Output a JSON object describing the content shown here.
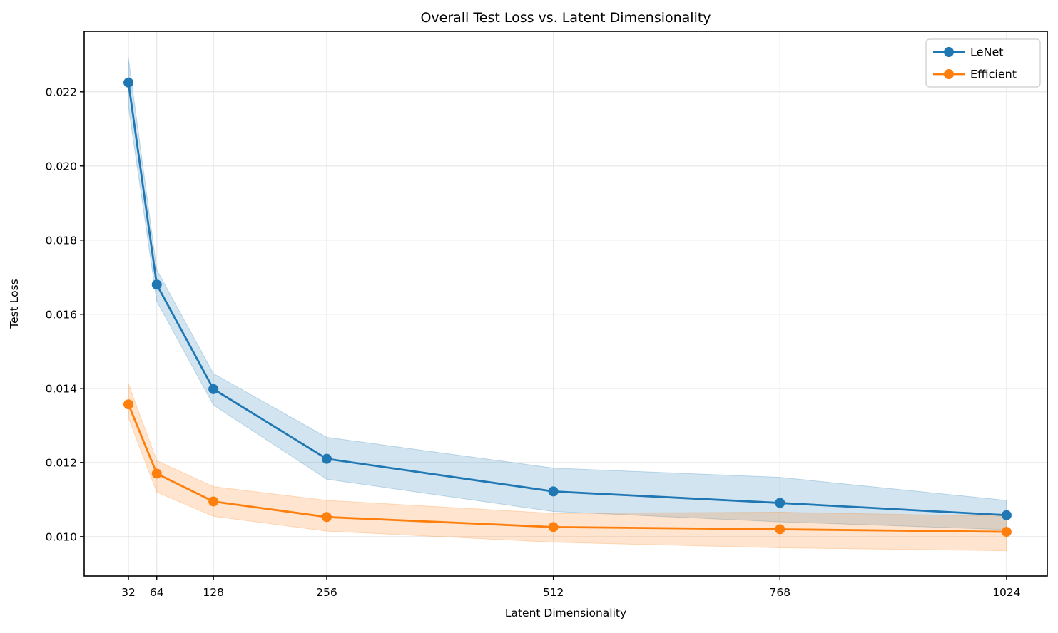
{
  "chart_data": {
    "type": "line",
    "title": "Overall Test Loss vs. Latent Dimensionality",
    "xlabel": "Latent Dimensionality",
    "ylabel": "Test Loss",
    "x": [
      32,
      64,
      128,
      256,
      512,
      768,
      1024
    ],
    "xtick_labels": [
      "32",
      "64",
      "128",
      "256",
      "512",
      "768",
      "1024"
    ],
    "ytick_values": [
      0.01,
      0.012,
      0.014,
      0.016,
      0.018,
      0.02,
      0.022
    ],
    "ytick_labels": [
      "0.010",
      "0.012",
      "0.014",
      "0.016",
      "0.018",
      "0.020",
      "0.022"
    ],
    "xlim": [
      -18,
      1070
    ],
    "ylim": [
      0.00894,
      0.02363
    ],
    "grid": true,
    "legend": {
      "position": "upper right",
      "entries": [
        "LeNet",
        "Efficient"
      ]
    },
    "series": [
      {
        "name": "LeNet",
        "color": "#1f77b4",
        "band_alpha": 0.2,
        "values": [
          0.02225,
          0.0168,
          0.01398,
          0.0121,
          0.01122,
          0.01091,
          0.01058
        ],
        "band_upper": [
          0.0229,
          0.0172,
          0.0144,
          0.01268,
          0.01185,
          0.0116,
          0.01098
        ],
        "band_lower": [
          0.0216,
          0.01635,
          0.01355,
          0.01155,
          0.01068,
          0.0104,
          0.01019
        ]
      },
      {
        "name": "Efficient",
        "color": "#ff7f0e",
        "band_alpha": 0.2,
        "values": [
          0.01357,
          0.0117,
          0.01095,
          0.01053,
          0.01026,
          0.0102,
          0.01013
        ],
        "band_upper": [
          0.01412,
          0.01205,
          0.01135,
          0.01098,
          0.01063,
          0.01066,
          0.01055
        ],
        "band_lower": [
          0.0132,
          0.0112,
          0.01055,
          0.01015,
          0.00985,
          0.0097,
          0.00962
        ]
      }
    ],
    "colors": {
      "grid": "#e6e6e6",
      "spine": "#000000",
      "background": "#ffffff",
      "legend_border": "#cccccc"
    }
  }
}
